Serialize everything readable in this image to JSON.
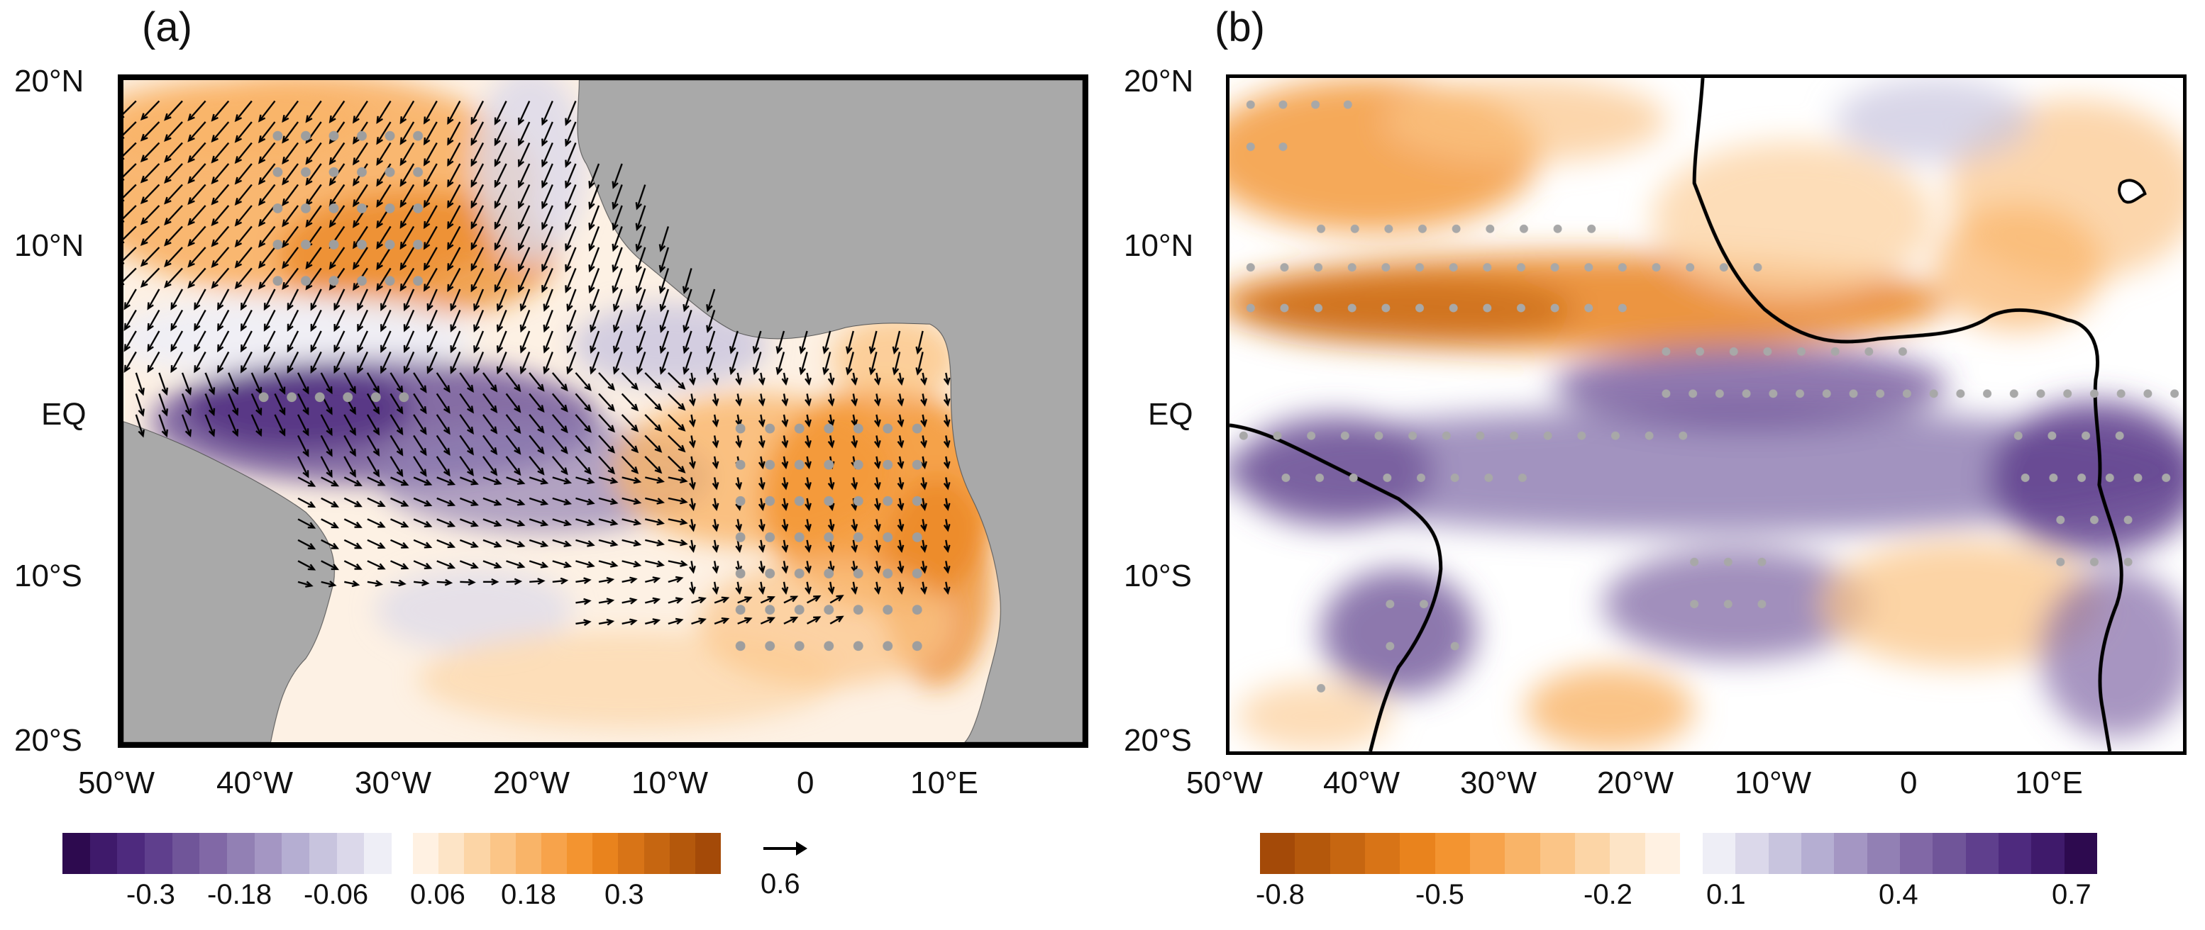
{
  "panels": [
    {
      "label": "(a)",
      "y_ticks": [
        "20°N",
        "10°N",
        "EQ",
        "10°S",
        "20°S"
      ],
      "x_ticks": [
        "50°W",
        "40°W",
        "30°W",
        "20°W",
        "10°W",
        "0",
        "10°E"
      ]
    },
    {
      "label": "(b)",
      "y_ticks": [
        "20°N",
        "10°N",
        "EQ",
        "10°S",
        "20°S"
      ],
      "x_ticks": [
        "50°W",
        "40°W",
        "30°W",
        "20°W",
        "10°W",
        "0",
        "10°E"
      ]
    }
  ],
  "colorbar_a": {
    "labels": [
      "-0.3",
      "-0.18",
      "-0.06",
      "0.06",
      "0.18",
      "0.3"
    ],
    "neg_colors": [
      "#2d0a4f",
      "#3f1a6b",
      "#4e2a7e",
      "#5f3f8d",
      "#705599",
      "#8168a6",
      "#9280b4",
      "#a496c3",
      "#b5aed2",
      "#c8c4de",
      "#dbd8ea",
      "#eeeef6"
    ],
    "pos_colors": [
      "#fff1e2",
      "#fde4c6",
      "#fcd5a6",
      "#fbc587",
      "#f9b468",
      "#f7a34b",
      "#f39430",
      "#e9831d",
      "#d87417",
      "#c66611",
      "#b4580c",
      "#a44a08"
    ]
  },
  "arrow_key": {
    "label": "0.6"
  },
  "colorbar_b": {
    "labels": [
      "-0.8",
      "-0.5",
      "-0.2",
      "0.1",
      "0.4",
      "0.7"
    ],
    "neg_colors": [
      "#a44a08",
      "#b4580c",
      "#c66611",
      "#d87417",
      "#e9831d",
      "#f39430",
      "#f7a34b",
      "#f9b468",
      "#fbc587",
      "#fcd5a6",
      "#fde4c6",
      "#fff1e2"
    ],
    "pos_colors": [
      "#eeeef6",
      "#dbd8ea",
      "#c8c4de",
      "#b5aed2",
      "#a496c3",
      "#9280b4",
      "#8168a6",
      "#705599",
      "#5f3f8d",
      "#4e2a7e",
      "#3f1a6b",
      "#2d0a4f"
    ]
  }
}
